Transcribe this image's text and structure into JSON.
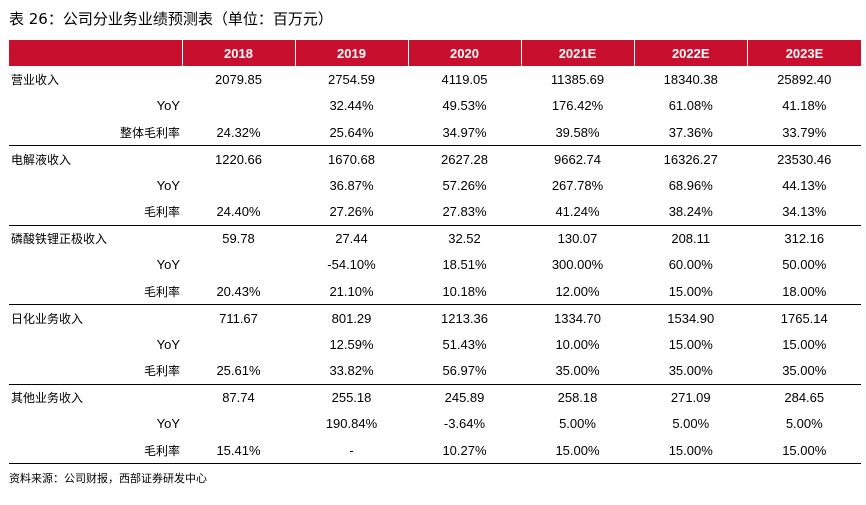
{
  "title": "表 26：公司分业务业绩预测表（单位：百万元）",
  "table": {
    "headers": [
      "",
      "2018",
      "2019",
      "2020",
      "2021E",
      "2022E",
      "2023E"
    ],
    "groups": [
      {
        "rows": [
          {
            "label": "营业收入",
            "kind": "main",
            "values": [
              "2079.85",
              "2754.59",
              "4119.05",
              "11385.69",
              "18340.38",
              "25892.40"
            ]
          },
          {
            "label": "YoY",
            "kind": "yoy",
            "values": [
              "",
              "32.44%",
              "49.53%",
              "176.42%",
              "61.08%",
              "41.18%"
            ]
          },
          {
            "label": "整体毛利率",
            "kind": "sub",
            "values": [
              "24.32%",
              "25.64%",
              "34.97%",
              "39.58%",
              "37.36%",
              "33.79%"
            ]
          }
        ]
      },
      {
        "rows": [
          {
            "label": "电解液收入",
            "kind": "main",
            "values": [
              "1220.66",
              "1670.68",
              "2627.28",
              "9662.74",
              "16326.27",
              "23530.46"
            ]
          },
          {
            "label": "YoY",
            "kind": "yoy",
            "values": [
              "",
              "36.87%",
              "57.26%",
              "267.78%",
              "68.96%",
              "44.13%"
            ]
          },
          {
            "label": "毛利率",
            "kind": "sub",
            "values": [
              "24.40%",
              "27.26%",
              "27.83%",
              "41.24%",
              "38.24%",
              "34.13%"
            ]
          }
        ]
      },
      {
        "rows": [
          {
            "label": "磷酸铁锂正极收入",
            "kind": "main",
            "values": [
              "59.78",
              "27.44",
              "32.52",
              "130.07",
              "208.11",
              "312.16"
            ]
          },
          {
            "label": "YoY",
            "kind": "yoy",
            "values": [
              "",
              "-54.10%",
              "18.51%",
              "300.00%",
              "60.00%",
              "50.00%"
            ]
          },
          {
            "label": "毛利率",
            "kind": "sub",
            "values": [
              "20.43%",
              "21.10%",
              "10.18%",
              "12.00%",
              "15.00%",
              "18.00%"
            ]
          }
        ]
      },
      {
        "rows": [
          {
            "label": "日化业务收入",
            "kind": "main",
            "values": [
              "711.67",
              "801.29",
              "1213.36",
              "1334.70",
              "1534.90",
              "1765.14"
            ]
          },
          {
            "label": "YoY",
            "kind": "yoy",
            "values": [
              "",
              "12.59%",
              "51.43%",
              "10.00%",
              "15.00%",
              "15.00%"
            ]
          },
          {
            "label": "毛利率",
            "kind": "sub",
            "values": [
              "25.61%",
              "33.82%",
              "56.97%",
              "35.00%",
              "35.00%",
              "35.00%"
            ]
          }
        ]
      },
      {
        "rows": [
          {
            "label": "其他业务收入",
            "kind": "main",
            "values": [
              "87.74",
              "255.18",
              "245.89",
              "258.18",
              "271.09",
              "284.65"
            ]
          },
          {
            "label": "YoY",
            "kind": "yoy",
            "values": [
              "",
              "190.84%",
              "-3.64%",
              "5.00%",
              "5.00%",
              "5.00%"
            ]
          },
          {
            "label": "毛利率",
            "kind": "sub",
            "values": [
              "15.41%",
              "-",
              "10.27%",
              "15.00%",
              "15.00%",
              "15.00%"
            ]
          }
        ]
      }
    ]
  },
  "source": "资料来源：公司财报，西部证券研发中心",
  "colors": {
    "header_bg": "#c8102e",
    "header_text": "#ffffff"
  }
}
